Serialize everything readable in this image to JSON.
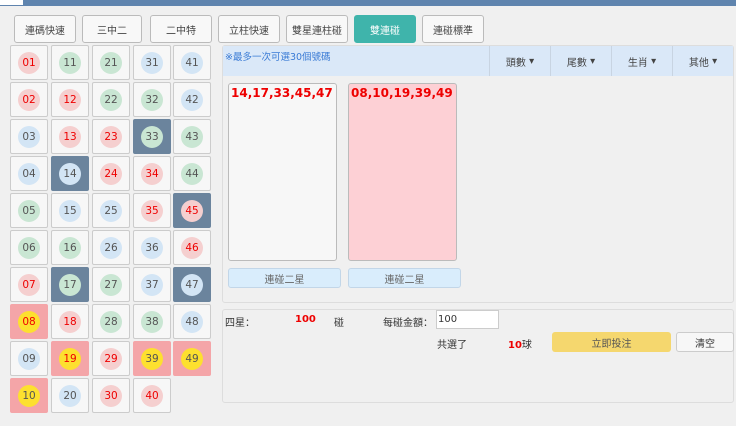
{
  "tabs": [
    "連碼快速",
    "三中二",
    "二中特",
    "立柱快速",
    "雙星連柱碰",
    "雙連碰",
    "連碰標準"
  ],
  "active_tab": "雙連碰",
  "note": "※最多一次可選30個號碼",
  "dropdowns": [
    "頭數",
    "尾數",
    "生肖",
    "其他"
  ],
  "balls": [
    {
      "n": "01",
      "c": "red"
    },
    {
      "n": "02",
      "c": "red"
    },
    {
      "n": "03",
      "c": "blue"
    },
    {
      "n": "04",
      "c": "blue"
    },
    {
      "n": "05",
      "c": "green"
    },
    {
      "n": "06",
      "c": "green"
    },
    {
      "n": "07",
      "c": "red"
    },
    {
      "n": "08",
      "c": "red"
    },
    {
      "n": "09",
      "c": "blue"
    },
    {
      "n": "10",
      "c": "blue"
    },
    {
      "n": "11",
      "c": "green"
    },
    {
      "n": "12",
      "c": "red"
    },
    {
      "n": "13",
      "c": "red"
    },
    {
      "n": "14",
      "c": "blue"
    },
    {
      "n": "15",
      "c": "blue"
    },
    {
      "n": "16",
      "c": "green"
    },
    {
      "n": "17",
      "c": "green"
    },
    {
      "n": "18",
      "c": "red"
    },
    {
      "n": "19",
      "c": "red"
    },
    {
      "n": "20",
      "c": "blue"
    },
    {
      "n": "21",
      "c": "green"
    },
    {
      "n": "22",
      "c": "green"
    },
    {
      "n": "23",
      "c": "red"
    },
    {
      "n": "24",
      "c": "red"
    },
    {
      "n": "25",
      "c": "blue"
    },
    {
      "n": "26",
      "c": "blue"
    },
    {
      "n": "27",
      "c": "green"
    },
    {
      "n": "28",
      "c": "green"
    },
    {
      "n": "29",
      "c": "red"
    },
    {
      "n": "30",
      "c": "red"
    },
    {
      "n": "31",
      "c": "blue"
    },
    {
      "n": "32",
      "c": "green"
    },
    {
      "n": "33",
      "c": "green"
    },
    {
      "n": "34",
      "c": "red"
    },
    {
      "n": "35",
      "c": "red"
    },
    {
      "n": "36",
      "c": "blue"
    },
    {
      "n": "37",
      "c": "blue"
    },
    {
      "n": "38",
      "c": "green"
    },
    {
      "n": "39",
      "c": "blue"
    },
    {
      "n": "40",
      "c": "red"
    },
    {
      "n": "41",
      "c": "blue"
    },
    {
      "n": "42",
      "c": "blue"
    },
    {
      "n": "43",
      "c": "green"
    },
    {
      "n": "44",
      "c": "green"
    },
    {
      "n": "45",
      "c": "red"
    },
    {
      "n": "46",
      "c": "red"
    },
    {
      "n": "47",
      "c": "blue"
    },
    {
      "n": "48",
      "c": "blue"
    },
    {
      "n": "49",
      "c": "green"
    }
  ],
  "group1": [
    "14",
    "17",
    "33",
    "45",
    "47"
  ],
  "group2": [
    "08",
    "10",
    "19",
    "39",
    "49"
  ],
  "box1_text": "14,17,33,45,47",
  "box2_text": "08,10,19,39,49",
  "box1_button": "連碰二星",
  "box2_button": "連碰二星",
  "bottom": {
    "label": "四星：",
    "count": "100",
    "unit": "碰",
    "amount_label": "每碰金額：",
    "amount_value": "100",
    "selected_label": "共選了",
    "selected_count": "10",
    "selected_unit": "球",
    "submit": "立即投注",
    "clear": "清空"
  },
  "colors": {
    "group1_bg": "#6b849d",
    "group2_bg": "#f4a5a8",
    "active_tab": "#3fb4ab",
    "submit": "#f5d76e"
  }
}
